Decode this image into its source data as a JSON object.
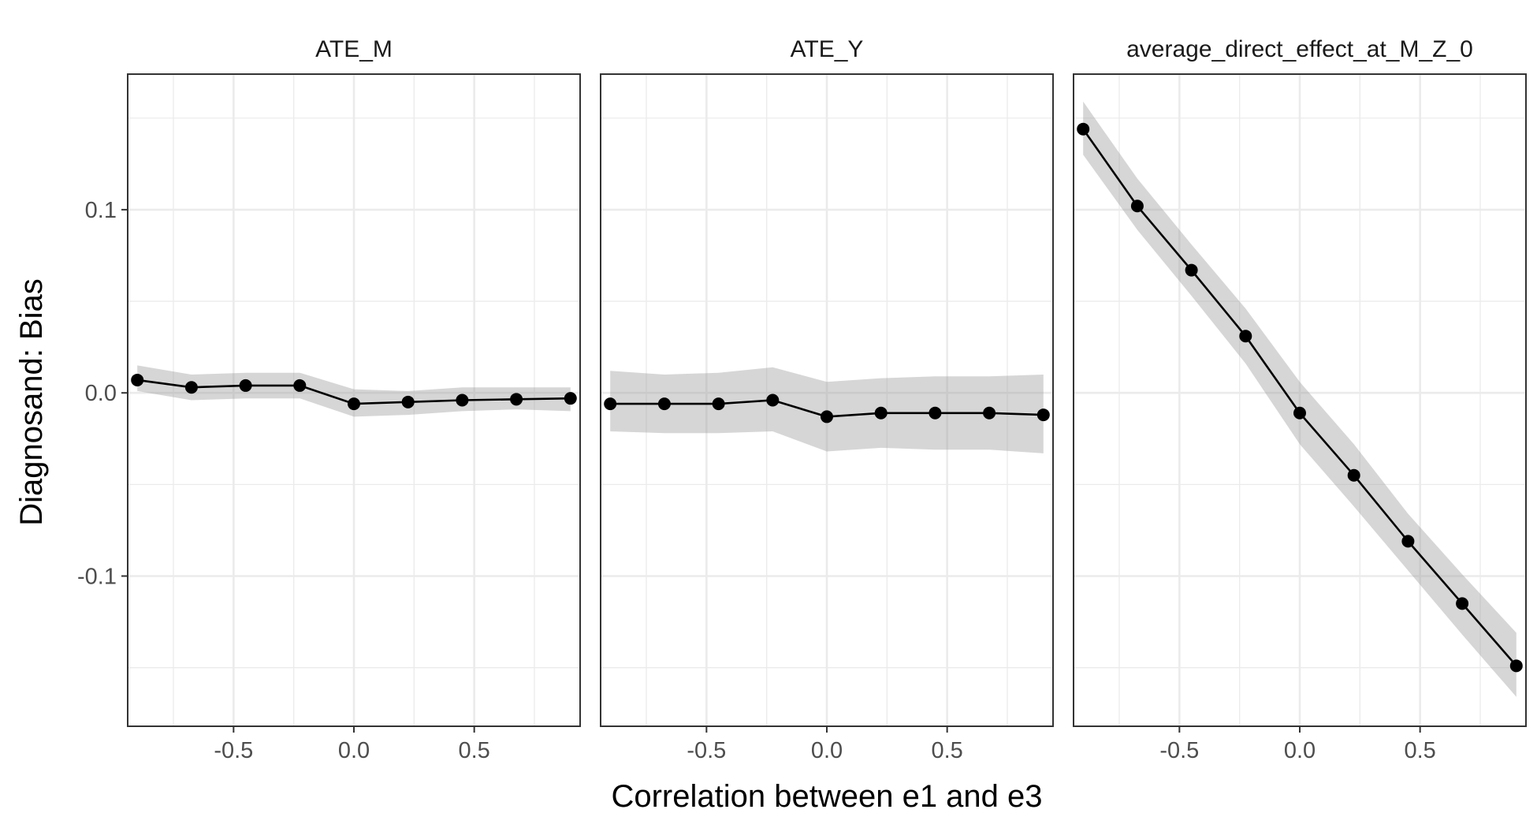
{
  "chart_data": {
    "type": "line",
    "facet_labels": [
      "ATE_M",
      "ATE_Y",
      "average_direct_effect_at_M_Z_0"
    ],
    "xlabel": "Correlation between e1 and e3",
    "ylabel": "Diagnosand: Bias",
    "x": [
      -0.9,
      -0.675,
      -0.45,
      -0.225,
      0.0,
      0.225,
      0.45,
      0.675,
      0.9
    ],
    "xlim": [
      -0.94,
      0.94
    ],
    "ylim": [
      -0.182,
      0.174
    ],
    "x_ticks": [
      -0.5,
      0.0,
      0.5
    ],
    "x_tick_labels": [
      "-0.5",
      "0.0",
      "0.5"
    ],
    "y_ticks": [
      0.1,
      0.0,
      -0.1
    ],
    "y_tick_labels": [
      "0.1",
      "0.0",
      "-0.1"
    ],
    "grid": true,
    "panels": [
      {
        "name": "ATE_M",
        "values": [
          0.007,
          0.003,
          0.004,
          0.004,
          -0.006,
          -0.005,
          -0.004,
          -0.0035,
          -0.003
        ],
        "ci_lower": [
          0.001,
          -0.004,
          -0.003,
          -0.003,
          -0.013,
          -0.012,
          -0.01,
          -0.009,
          -0.01
        ],
        "ci_upper": [
          0.015,
          0.01,
          0.011,
          0.011,
          0.002,
          0.001,
          0.003,
          0.003,
          0.003
        ]
      },
      {
        "name": "ATE_Y",
        "values": [
          -0.006,
          -0.006,
          -0.006,
          -0.004,
          -0.013,
          -0.011,
          -0.011,
          -0.011,
          -0.012
        ],
        "ci_lower": [
          -0.021,
          -0.022,
          -0.022,
          -0.021,
          -0.032,
          -0.03,
          -0.031,
          -0.031,
          -0.033
        ],
        "ci_upper": [
          0.012,
          0.01,
          0.011,
          0.014,
          0.006,
          0.008,
          0.009,
          0.009,
          0.01
        ]
      },
      {
        "name": "average_direct_effect_at_M_Z_0",
        "values": [
          0.144,
          0.102,
          0.067,
          0.031,
          -0.011,
          -0.045,
          -0.081,
          -0.115,
          -0.149
        ],
        "ci_lower": [
          0.13,
          0.089,
          0.053,
          0.016,
          -0.028,
          -0.062,
          -0.097,
          -0.132,
          -0.166
        ],
        "ci_upper": [
          0.159,
          0.117,
          0.081,
          0.046,
          0.006,
          -0.028,
          -0.066,
          -0.099,
          -0.131
        ]
      }
    ],
    "colors": {
      "line": "#000000",
      "ribbon": "#999999",
      "grid": "#ebebeb",
      "panel_border": "#333333",
      "text": "#000000",
      "tick_text": "#4d4d4d"
    }
  }
}
